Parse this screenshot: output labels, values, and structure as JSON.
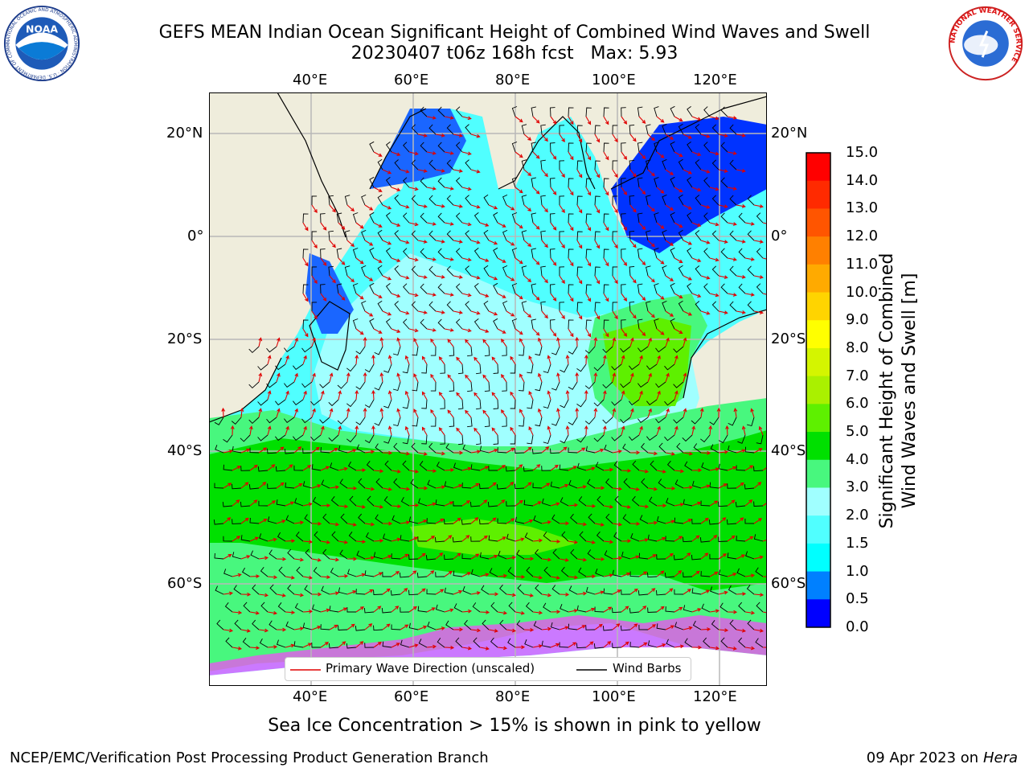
{
  "header": {
    "title_line1": "GEFS MEAN Indian Ocean Significant Height of Combined Wind Waves and Swell",
    "title_line2": "20230407 t06z 168h fcst   Max: 5.93"
  },
  "logos": {
    "left": {
      "name": "noaa-logo",
      "text": "NOAA",
      "ring_text": "NATIONAL OCEANIC AND ATMOSPHERIC ADMINISTRATION · U.S. DEPARTMENT OF COMMERCE"
    },
    "right": {
      "name": "nws-logo",
      "ring_text": "NATIONAL WEATHER SERVICE"
    }
  },
  "map": {
    "lon_ticks_top": [
      "40°E",
      "60°E",
      "80°E",
      "100°E",
      "120°E"
    ],
    "lon_ticks_bottom": [
      "40°E",
      "60°E",
      "80°E",
      "100°E",
      "120°E"
    ],
    "lat_ticks_left": [
      "20°N",
      "0°",
      "20°S",
      "40°S",
      "60°S"
    ],
    "lat_ticks_right": [
      "20°N",
      "0°",
      "20°S",
      "40°S",
      "60°S"
    ],
    "colors": {
      "land": "#efeddc",
      "ocean_low": "#00ffff",
      "swell_2_3": "#a0ffff",
      "swell_3_4": "#48f77e",
      "swell_4_5": "#00e000",
      "swell_5_6": "#5ef000",
      "ice": "#ff40ff",
      "barb": "#000000",
      "arrow": "#e00000"
    }
  },
  "legend": {
    "wave_label": "Primary Wave Direction (unscaled)",
    "barb_label": "Wind Barbs"
  },
  "colorbar": {
    "label_line1": "Significant Height of Combined",
    "label_line2": "Wind Waves and Swell [m]",
    "ticks": [
      "15.0",
      "14.0",
      "13.0",
      "12.0",
      "11.0",
      "10.0",
      "9.0",
      "8.0",
      "7.0",
      "6.0",
      "5.0",
      "4.0",
      "3.0",
      "2.0",
      "1.5",
      "1.0",
      "0.5",
      "0.0"
    ],
    "colors": [
      "#ff0000",
      "#ff2a00",
      "#ff5500",
      "#ff8000",
      "#ffaa00",
      "#ffd400",
      "#ffff00",
      "#d4f500",
      "#aaf000",
      "#5ef000",
      "#00e000",
      "#48f77e",
      "#a0ffff",
      "#50ffff",
      "#00ffff",
      "#0080ff",
      "#0000ff"
    ]
  },
  "caption": "Sea Ice Concentration > 15% is shown in pink to yellow",
  "footer": {
    "left": "NCEP/EMC/Verification Post Processing Product Generation Branch",
    "right_date": "09 Apr 2023 on ",
    "right_host": "Hera"
  }
}
